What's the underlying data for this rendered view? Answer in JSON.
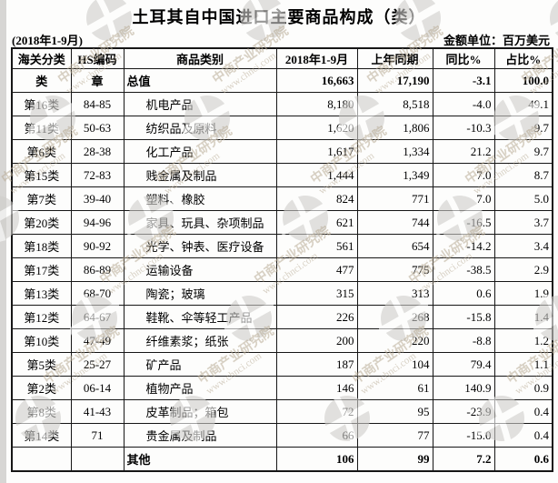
{
  "page": {
    "title": "土耳其自中国进口主要商品构成（类）",
    "period": "(2018年1-9月)",
    "unit_label": "金额单位：百万美元"
  },
  "watermark": {
    "org": "中商产业研究院",
    "url": "www.chnci.com"
  },
  "table": {
    "columns": [
      "海关分类",
      "HS编码",
      "商品类别",
      "2018年1-9月",
      "上年同期",
      "同比%",
      "占比%"
    ],
    "rows": [
      {
        "category": "类",
        "hs_code": "章",
        "name": "总值",
        "value_2018": "16,663",
        "prev_year": "17,190",
        "yoy_pct": "-3.1",
        "share_pct": "100.0",
        "bold": true,
        "indent": false
      },
      {
        "category": "第16类",
        "hs_code": "84-85",
        "name": "机电产品",
        "value_2018": "8,180",
        "prev_year": "8,518",
        "yoy_pct": "-4.0",
        "share_pct": "49.1",
        "bold": false,
        "indent": true
      },
      {
        "category": "第11类",
        "hs_code": "50-63",
        "name": "纺织品及原料",
        "value_2018": "1,620",
        "prev_year": "1,806",
        "yoy_pct": "-10.3",
        "share_pct": "9.7",
        "bold": false,
        "indent": true
      },
      {
        "category": "第6类",
        "hs_code": "28-38",
        "name": "化工产品",
        "value_2018": "1,617",
        "prev_year": "1,334",
        "yoy_pct": "21.2",
        "share_pct": "9.7",
        "bold": false,
        "indent": true
      },
      {
        "category": "第15类",
        "hs_code": "72-83",
        "name": "贱金属及制品",
        "value_2018": "1,444",
        "prev_year": "1,349",
        "yoy_pct": "7.0",
        "share_pct": "8.7",
        "bold": false,
        "indent": true
      },
      {
        "category": "第7类",
        "hs_code": "39-40",
        "name": "塑料、橡胶",
        "value_2018": "824",
        "prev_year": "771",
        "yoy_pct": "7.0",
        "share_pct": "5.0",
        "bold": false,
        "indent": true
      },
      {
        "category": "第20类",
        "hs_code": "94-96",
        "name": "家具、玩具、杂项制品",
        "value_2018": "621",
        "prev_year": "744",
        "yoy_pct": "-16.5",
        "share_pct": "3.7",
        "bold": false,
        "indent": true
      },
      {
        "category": "第18类",
        "hs_code": "90-92",
        "name": "光学、钟表、医疗设备",
        "value_2018": "561",
        "prev_year": "654",
        "yoy_pct": "-14.2",
        "share_pct": "3.4",
        "bold": false,
        "indent": true
      },
      {
        "category": "第17类",
        "hs_code": "86-89",
        "name": "运输设备",
        "value_2018": "477",
        "prev_year": "775",
        "yoy_pct": "-38.5",
        "share_pct": "2.9",
        "bold": false,
        "indent": true
      },
      {
        "category": "第13类",
        "hs_code": "68-70",
        "name": "陶瓷；玻璃",
        "value_2018": "315",
        "prev_year": "313",
        "yoy_pct": "0.6",
        "share_pct": "1.9",
        "bold": false,
        "indent": true
      },
      {
        "category": "第12类",
        "hs_code": "64-67",
        "name": "鞋靴、伞等轻工产品",
        "value_2018": "226",
        "prev_year": "268",
        "yoy_pct": "-15.8",
        "share_pct": "1.4",
        "bold": false,
        "indent": true
      },
      {
        "category": "第10类",
        "hs_code": "47-49",
        "name": "纤维素浆；纸张",
        "value_2018": "200",
        "prev_year": "220",
        "yoy_pct": "-8.8",
        "share_pct": "1.2",
        "bold": false,
        "indent": true
      },
      {
        "category": "第5类",
        "hs_code": "25-27",
        "name": "矿产品",
        "value_2018": "187",
        "prev_year": "104",
        "yoy_pct": "79.4",
        "share_pct": "1.1",
        "bold": false,
        "indent": true
      },
      {
        "category": "第2类",
        "hs_code": "06-14",
        "name": "植物产品",
        "value_2018": "146",
        "prev_year": "61",
        "yoy_pct": "140.9",
        "share_pct": "0.9",
        "bold": false,
        "indent": true
      },
      {
        "category": "第8类",
        "hs_code": "41-43",
        "name": "皮革制品；箱包",
        "value_2018": "72",
        "prev_year": "95",
        "yoy_pct": "-23.9",
        "share_pct": "0.4",
        "bold": false,
        "indent": true
      },
      {
        "category": "第14类",
        "hs_code": "71",
        "name": "贵金属及制品",
        "value_2018": "66",
        "prev_year": "77",
        "yoy_pct": "-15.0",
        "share_pct": "0.4",
        "bold": false,
        "indent": true
      },
      {
        "category": "",
        "hs_code": "",
        "name": "其他",
        "value_2018": "106",
        "prev_year": "99",
        "yoy_pct": "7.2",
        "share_pct": "0.6",
        "bold": true,
        "indent": false
      }
    ]
  }
}
